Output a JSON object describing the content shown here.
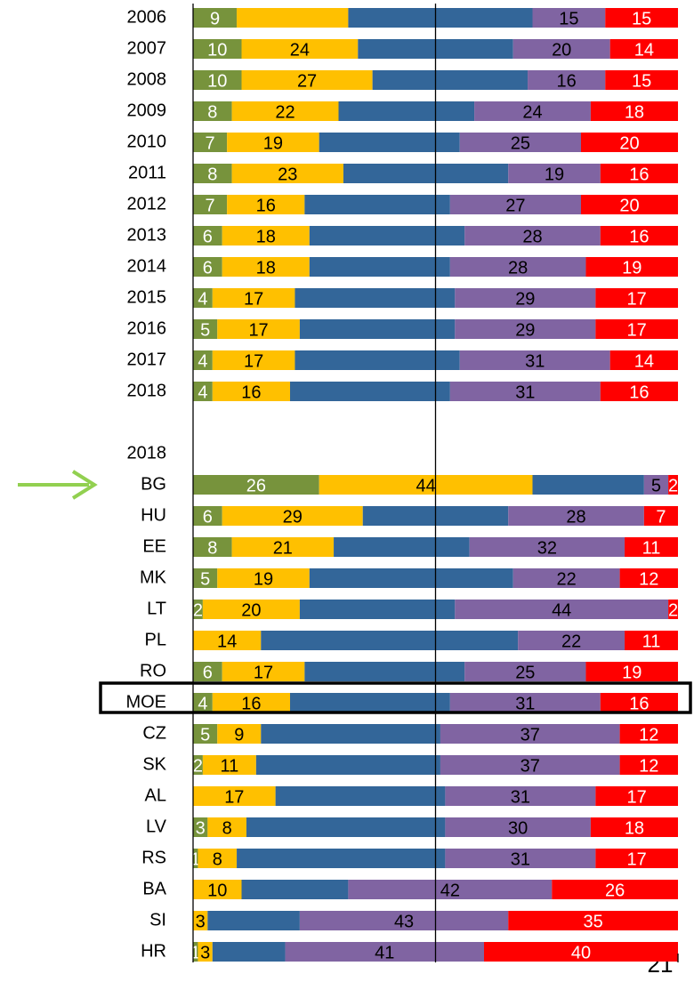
{
  "chart_data": {
    "type": "stacked-bar-horizontal",
    "categories": [
      "2006",
      "2007",
      "2008",
      "2009",
      "2010",
      "2011",
      "2012",
      "2013",
      "2014",
      "2015",
      "2016",
      "2017",
      "2018",
      "BG",
      "HU",
      "EE",
      "MK",
      "LT",
      "PL",
      "RO",
      "MOE",
      "CZ",
      "SK",
      "AL",
      "LV",
      "RS",
      "BA",
      "SI",
      "HR"
    ],
    "section_label": "2018",
    "series": [
      {
        "color": "#77933c",
        "label_color": "#ffffff",
        "values": [
          9,
          10,
          10,
          8,
          7,
          8,
          7,
          6,
          6,
          4,
          5,
          4,
          4,
          26,
          6,
          8,
          5,
          2,
          0,
          6,
          4,
          5,
          2,
          0,
          3,
          1,
          0,
          0,
          1
        ],
        "value_labels": [
          "9",
          "10",
          "10",
          "8",
          "7",
          "8",
          "7",
          "6",
          "6",
          "4",
          "5",
          "4",
          "4",
          "26",
          "6",
          "8",
          "5",
          "2",
          null,
          "6",
          "4",
          "5",
          "2",
          null,
          "3",
          "1",
          null,
          null,
          "1"
        ]
      },
      {
        "color": "#ffc000",
        "label_color": "#000000",
        "values": [
          23,
          24,
          27,
          22,
          19,
          23,
          16,
          18,
          18,
          17,
          17,
          17,
          16,
          44,
          29,
          21,
          19,
          20,
          14,
          17,
          16,
          9,
          11,
          17,
          8,
          8,
          10,
          3,
          3
        ],
        "value_labels": [
          null,
          "24",
          "27",
          "22",
          "19",
          "23",
          "16",
          "18",
          "18",
          "17",
          "17",
          "17",
          "16",
          "44",
          "29",
          "21",
          "19",
          "20",
          "14",
          "17",
          "16",
          "9",
          "11",
          "17",
          "8",
          "8",
          "10",
          "3",
          "3"
        ]
      },
      {
        "color": "#336699",
        "label_color": "#ffffff",
        "values": [
          38,
          32,
          32,
          28,
          29,
          34,
          30,
          32,
          29,
          33,
          32,
          34,
          33,
          23,
          30,
          28,
          42,
          32,
          53,
          33,
          33,
          37,
          38,
          35,
          41,
          43,
          22,
          19,
          15
        ]
      },
      {
        "color": "#8064a2",
        "label_color": "#000000",
        "values": [
          15,
          20,
          16,
          24,
          25,
          19,
          27,
          28,
          28,
          29,
          29,
          31,
          31,
          5,
          28,
          32,
          22,
          44,
          22,
          25,
          31,
          37,
          37,
          31,
          30,
          31,
          42,
          43,
          41
        ],
        "value_labels": [
          "15",
          "20",
          "16",
          "24",
          "25",
          "19",
          "27",
          "28",
          "28",
          "29",
          "29",
          "31",
          "31",
          "5",
          "28",
          "32",
          "22",
          "44",
          "22",
          "25",
          "31",
          "37",
          "37",
          "31",
          "30",
          "31",
          "42",
          "43",
          "41"
        ]
      },
      {
        "color": "#ff0000",
        "label_color": "#ffffff",
        "values": [
          15,
          14,
          15,
          18,
          20,
          16,
          20,
          16,
          19,
          17,
          17,
          14,
          16,
          2,
          7,
          11,
          12,
          2,
          11,
          19,
          16,
          12,
          12,
          17,
          18,
          17,
          26,
          35,
          40
        ],
        "value_labels": [
          "15",
          "14",
          "15",
          "18",
          "20",
          "16",
          "20",
          "16",
          "19",
          "17",
          "17",
          "14",
          "16",
          "2",
          "7",
          "11",
          "12",
          "2",
          "11",
          "19",
          "16",
          "12",
          "12",
          "17",
          "18",
          "17",
          "26",
          "35",
          "40"
        ]
      }
    ],
    "xlim": [
      0,
      100
    ],
    "xticks": [
      0,
      50,
      100
    ],
    "grid": true
  },
  "page_number": "21"
}
